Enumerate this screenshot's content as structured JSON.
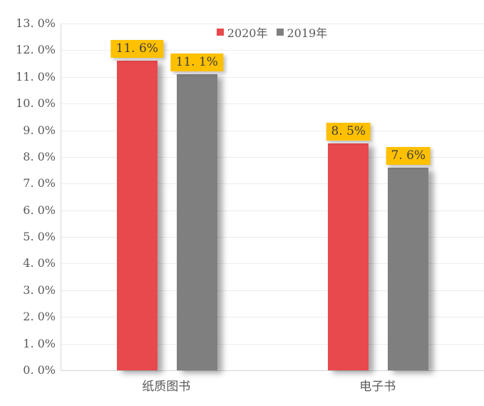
{
  "chart_data": {
    "type": "bar",
    "title": "",
    "xlabel": "",
    "ylabel": "",
    "categories": [
      "纸质图书",
      "电子书"
    ],
    "series": [
      {
        "name": "2020年",
        "color": "#E8494D",
        "values": [
          11.6,
          8.5
        ],
        "data_labels": [
          "11. 6%",
          "8. 5%"
        ]
      },
      {
        "name": "2019年",
        "color": "#7F7F7F",
        "values": [
          11.1,
          7.6
        ],
        "data_labels": [
          "11. 1%",
          "7. 6%"
        ]
      }
    ],
    "ylim": [
      0,
      13
    ],
    "ytick_labels": [
      "0. 0%",
      "1. 0%",
      "2. 0%",
      "3. 0%",
      "4. 0%",
      "5. 0%",
      "6. 0%",
      "7. 0%",
      "8. 0%",
      "9. 0%",
      "10. 0%",
      "11. 0%",
      "12. 0%",
      "13. 0%"
    ],
    "grid": true,
    "legend_position": "top-center",
    "data_label_bg": "#FFC000"
  },
  "styles": {
    "background": "#FFFFFF",
    "grid_color": "#EDEDED",
    "axis_color": "#D6D6D6",
    "tick_text_color": "#595959",
    "data_label_text_color": "#3F3F3F",
    "data_label_bg": "#FFC000",
    "series_colors": [
      "#E8494D",
      "#7F7F7F"
    ]
  }
}
